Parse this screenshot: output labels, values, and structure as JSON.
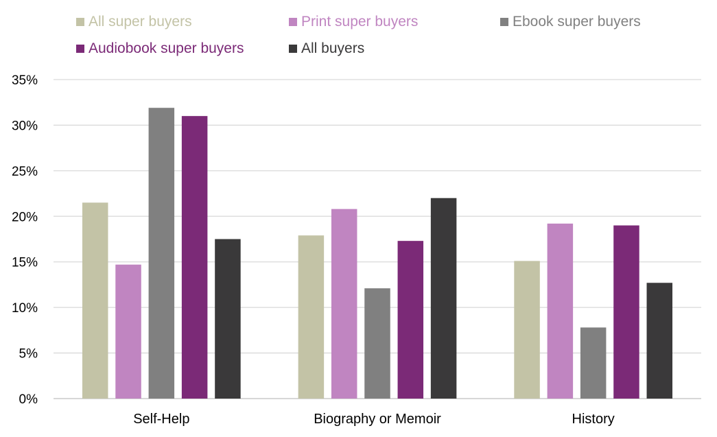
{
  "chart_data": {
    "type": "bar",
    "categories": [
      "Self-Help",
      "Biography or Memoir",
      "History"
    ],
    "series": [
      {
        "name": "All super buyers",
        "color": "#c3c3a6",
        "values": [
          21.5,
          17.9,
          15.1
        ]
      },
      {
        "name": "Print super buyers",
        "color": "#c085c1",
        "values": [
          14.7,
          20.8,
          19.2
        ]
      },
      {
        "name": "Ebook super buyers",
        "color": "#808080",
        "values": [
          31.9,
          12.1,
          7.8
        ]
      },
      {
        "name": "Audiobook super buyers",
        "color": "#7b2a77",
        "values": [
          31.0,
          17.3,
          19.0
        ]
      },
      {
        "name": "All buyers",
        "color": "#3a393a",
        "values": [
          17.5,
          22.0,
          12.7
        ]
      }
    ],
    "ylim": [
      0,
      35
    ],
    "yticks": [
      "0%",
      "5%",
      "10%",
      "15%",
      "20%",
      "25%",
      "30%",
      "35%"
    ],
    "ytick_values": [
      0,
      5,
      10,
      15,
      20,
      25,
      30,
      35
    ],
    "grid": true,
    "legend_position": "top",
    "title": "",
    "xlabel": "",
    "ylabel": ""
  }
}
